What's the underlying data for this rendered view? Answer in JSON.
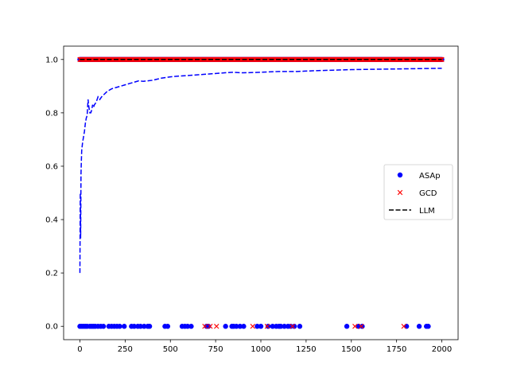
{
  "chart_data": {
    "type": "scatter",
    "title": "",
    "xlabel": "",
    "ylabel": "",
    "xlim": [
      -90,
      2090
    ],
    "ylim": [
      -0.05,
      1.05
    ],
    "xticks": [
      0,
      250,
      500,
      750,
      1000,
      1250,
      1500,
      1750,
      2000
    ],
    "yticks": [
      0.0,
      0.2,
      0.4,
      0.6,
      0.8,
      1.0
    ],
    "xtick_labels": [
      "0",
      "250",
      "500",
      "750",
      "1000",
      "1250",
      "1500",
      "1750",
      "2000"
    ],
    "ytick_labels": [
      "0.0",
      "0.2",
      "0.4",
      "0.6",
      "0.8",
      "1.0"
    ],
    "grid": false,
    "legend_position": "center-right",
    "series": [
      {
        "name": "ASAp",
        "kind": "scatter",
        "marker": "circle",
        "color": "#0000ff",
        "points_y0": [
          0,
          10,
          20,
          30,
          40,
          55,
          65,
          75,
          85,
          100,
          115,
          130,
          160,
          175,
          190,
          205,
          220,
          245,
          285,
          300,
          320,
          335,
          355,
          375,
          385,
          470,
          485,
          565,
          580,
          595,
          615,
          700,
          710,
          805,
          840,
          850,
          865,
          885,
          905,
          980,
          1000,
          1040,
          1065,
          1085,
          1100,
          1110,
          1130,
          1150,
          1165,
          1185,
          1215,
          1475,
          1540,
          1560,
          1805,
          1875,
          1915,
          1925
        ],
        "points_y1_range": [
          0,
          2000
        ]
      },
      {
        "name": "GCD",
        "kind": "scatter",
        "marker": "x",
        "color": "#ff0000",
        "points_y0": [
          690,
          720,
          755,
          955,
          1035,
          1175,
          1520,
          1555,
          1790
        ],
        "points_y1_range": [
          0,
          2000
        ]
      },
      {
        "name": "LLM",
        "kind": "line",
        "style": "dashed",
        "color": "#000000",
        "x": [
          0,
          2000
        ],
        "y": [
          1.0,
          1.0
        ]
      },
      {
        "kind": "line",
        "style": "dashed",
        "color": "#0000ff",
        "x": [
          0,
          2,
          4,
          6,
          8,
          10,
          15,
          20,
          25,
          30,
          35,
          40,
          45,
          50,
          55,
          60,
          65,
          70,
          75,
          80,
          90,
          100,
          110,
          120,
          135,
          150,
          175,
          200,
          225,
          250,
          275,
          300,
          325,
          350,
          375,
          400,
          450,
          500,
          550,
          600,
          700,
          800,
          850,
          900,
          1000,
          1100,
          1200,
          1300,
          1400,
          1500,
          1600,
          1700,
          1800,
          1900,
          2000
        ],
        "y": [
          0.2,
          0.5,
          0.33,
          0.57,
          0.62,
          0.66,
          0.69,
          0.71,
          0.73,
          0.76,
          0.78,
          0.79,
          0.85,
          0.82,
          0.8,
          0.8,
          0.81,
          0.83,
          0.82,
          0.83,
          0.84,
          0.86,
          0.85,
          0.86,
          0.87,
          0.88,
          0.89,
          0.895,
          0.9,
          0.905,
          0.91,
          0.915,
          0.92,
          0.918,
          0.92,
          0.922,
          0.93,
          0.935,
          0.938,
          0.94,
          0.945,
          0.95,
          0.952,
          0.95,
          0.952,
          0.955,
          0.955,
          0.958,
          0.96,
          0.962,
          0.963,
          0.964,
          0.965,
          0.966,
          0.967
        ]
      }
    ]
  }
}
